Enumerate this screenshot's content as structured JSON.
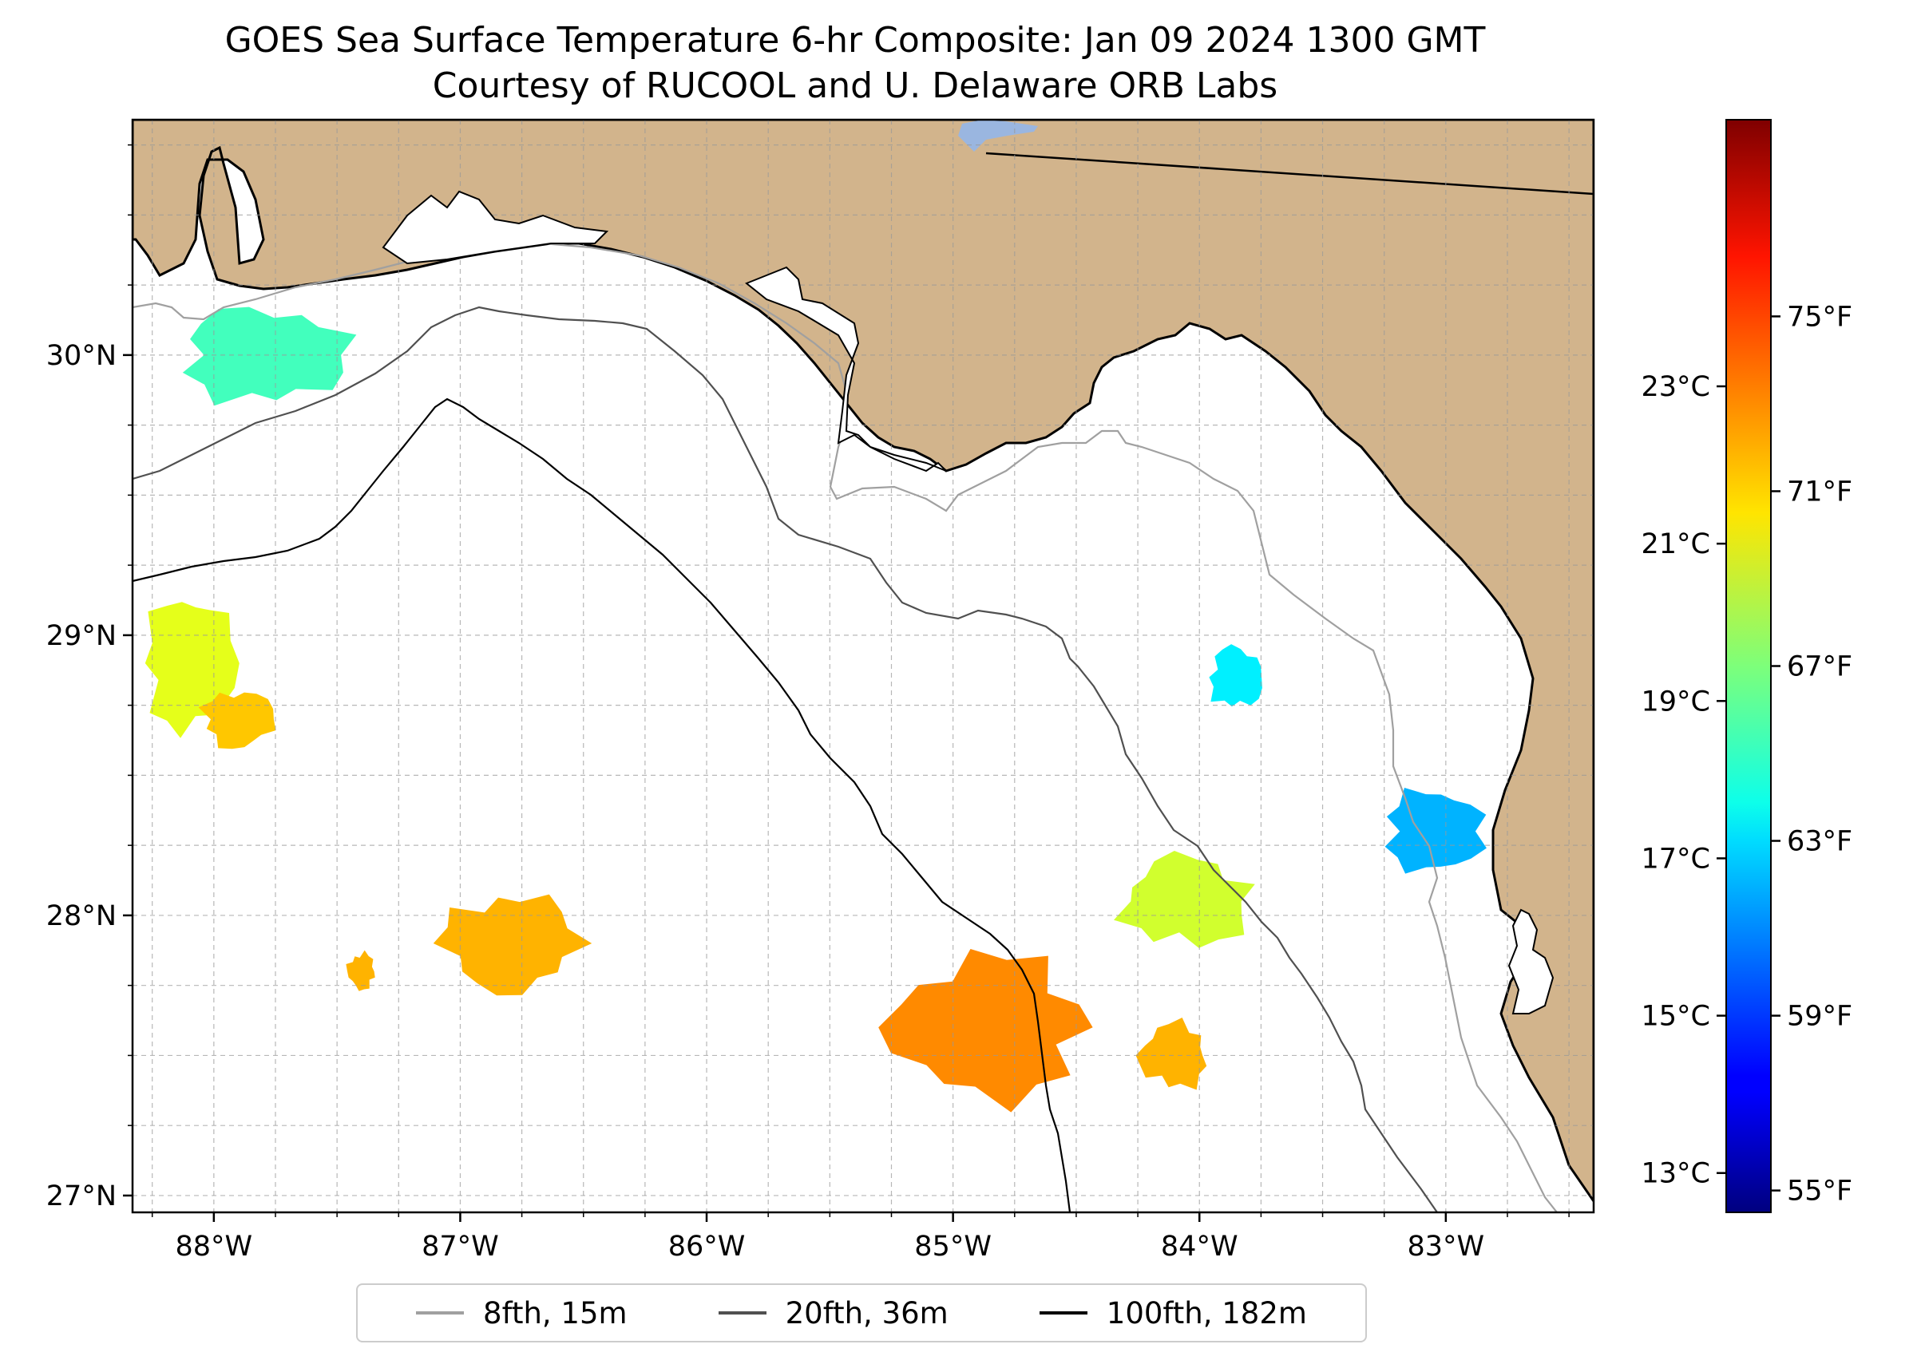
{
  "title": {
    "line1": "GOES Sea Surface Temperature 6-hr Composite: Jan 09 2024 1300 GMT",
    "line2": "Courtesy of RUCOOL and U. Delaware ORB Labs"
  },
  "map": {
    "extent": {
      "lon_min": -88.33,
      "lon_max": -82.4,
      "lat_min": 26.94,
      "lat_max": 30.84
    },
    "lon_ticks": [
      {
        "value": -88,
        "label": "88°W"
      },
      {
        "value": -87,
        "label": "87°W"
      },
      {
        "value": -86,
        "label": "86°W"
      },
      {
        "value": -85,
        "label": "85°W"
      },
      {
        "value": -84,
        "label": "84°W"
      },
      {
        "value": -83,
        "label": "83°W"
      }
    ],
    "lat_ticks": [
      {
        "value": 27,
        "label": "27°N"
      },
      {
        "value": 28,
        "label": "28°N"
      },
      {
        "value": 29,
        "label": "29°N"
      },
      {
        "value": 30,
        "label": "30°N"
      }
    ],
    "gridlines": true,
    "land_color": "#d2b48c",
    "water_color": "#ffffff",
    "lake_color": "#9ab6e0",
    "sst_patches": [
      {
        "name": "panhandle-nearshore",
        "lon": -87.8,
        "lat": 30.0,
        "temp_f": 65.5
      },
      {
        "name": "mobile-offshore-warm",
        "lon": -88.1,
        "lat": 28.9,
        "temp_f": 69.5
      },
      {
        "name": "mobile-offshore-orange",
        "lon": -87.9,
        "lat": 28.7,
        "temp_f": 71.5
      },
      {
        "name": "deep-gulf-center",
        "lon": -86.8,
        "lat": 27.9,
        "temp_f": 72.0
      },
      {
        "name": "small-west-patch",
        "lon": -87.4,
        "lat": 27.8,
        "temp_f": 72.0
      },
      {
        "name": "south-center-warm",
        "lon": -84.85,
        "lat": 27.6,
        "temp_f": 73.0
      },
      {
        "name": "south-center-east",
        "lon": -84.1,
        "lat": 27.5,
        "temp_f": 72.0
      },
      {
        "name": "tampa-offshore",
        "lon": -84.05,
        "lat": 28.05,
        "temp_f": 69.0
      },
      {
        "name": "big-bend-cool",
        "lon": -83.85,
        "lat": 28.85,
        "temp_f": 63.5
      },
      {
        "name": "nature-coast-cool",
        "lon": -83.05,
        "lat": 28.3,
        "temp_f": 62.0
      }
    ]
  },
  "colorbar": {
    "cmap": "jet",
    "vmin_f": 54.5,
    "vmax_f": 79.5,
    "fahrenheit_ticks": [
      {
        "value": 55,
        "label": "55°F"
      },
      {
        "value": 59,
        "label": "59°F"
      },
      {
        "value": 63,
        "label": "63°F"
      },
      {
        "value": 67,
        "label": "67°F"
      },
      {
        "value": 71,
        "label": "71°F"
      },
      {
        "value": 75,
        "label": "75°F"
      }
    ],
    "celsius_ticks": [
      {
        "value": 13,
        "label": "13°C"
      },
      {
        "value": 15,
        "label": "15°C"
      },
      {
        "value": 17,
        "label": "17°C"
      },
      {
        "value": 19,
        "label": "19°C"
      },
      {
        "value": 21,
        "label": "21°C"
      },
      {
        "value": 23,
        "label": "23°C"
      }
    ]
  },
  "legend": {
    "items": [
      {
        "label": "8fth, 15m",
        "color": "#a0a0a0"
      },
      {
        "label": "20fth, 36m",
        "color": "#505050"
      },
      {
        "label": "100fth, 182m",
        "color": "#000000"
      }
    ],
    "position": "bottom-center"
  }
}
